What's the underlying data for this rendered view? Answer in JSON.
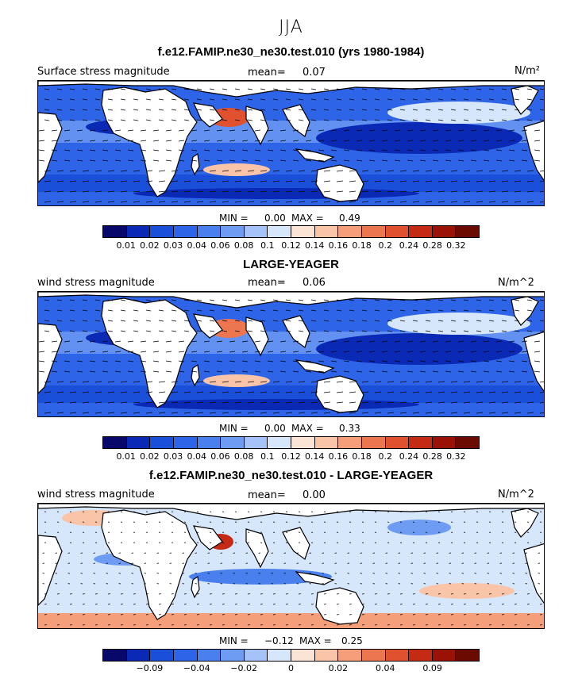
{
  "figure_title": "JJA",
  "panels": [
    {
      "title": "f.e12.FAMIP.ne30_ne30.test.010 (yrs 1980-1984)",
      "left_label": "Surface stress magnitude",
      "mean_label": "mean=",
      "mean_value": "0.07",
      "units": "N/m²",
      "min_label": "MIN =",
      "min_value": "0.00",
      "max_label": "MAX =",
      "max_value": "0.49",
      "colorbar_ticks": [
        "0.01",
        "0.02",
        "0.03",
        "0.04",
        "0.06",
        "0.08",
        "0.1",
        "0.12",
        "0.14",
        "0.16",
        "0.18",
        "0.2",
        "0.24",
        "0.28",
        "0.32"
      ]
    },
    {
      "title": "LARGE-YEAGER",
      "left_label": "wind stress magnitude",
      "mean_label": "mean=",
      "mean_value": "0.06",
      "units": "N/m^2",
      "min_label": "MIN =",
      "min_value": "0.00",
      "max_label": "MAX =",
      "max_value": "0.33",
      "colorbar_ticks": [
        "0.01",
        "0.02",
        "0.03",
        "0.04",
        "0.06",
        "0.08",
        "0.1",
        "0.12",
        "0.14",
        "0.16",
        "0.18",
        "0.2",
        "0.24",
        "0.28",
        "0.32"
      ]
    },
    {
      "title": "f.e12.FAMIP.ne30_ne30.test.010 - LARGE-YEAGER",
      "left_label": "wind stress magnitude",
      "mean_label": "mean=",
      "mean_value": "0.00",
      "units": "N/m^2",
      "min_label": "MIN =",
      "min_value": "−0.12",
      "max_label": "MAX =",
      "max_value": "0.25",
      "colorbar_ticks": [
        "",
        "−0.09",
        "",
        "−0.04",
        "",
        "−0.02",
        "",
        "0",
        "",
        "0.02",
        "",
        "0.04",
        "",
        "0.09",
        ""
      ]
    }
  ],
  "colors": {
    "scale16": [
      "#08086b",
      "#0a2ab5",
      "#1a4fd9",
      "#2e64e8",
      "#4a80ee",
      "#6f9cf3",
      "#a5c3f8",
      "#d6e6fb",
      "#fbe3d5",
      "#f9c4a8",
      "#f49e7a",
      "#ec7650",
      "#e0512f",
      "#c52b14",
      "#9a1206",
      "#6b0a00"
    ],
    "land": "#ffffff",
    "coast": "#000000"
  }
}
